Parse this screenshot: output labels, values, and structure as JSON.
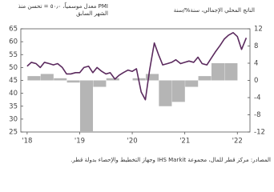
{
  "chart_data": {
    "type": "combo",
    "y_label": [
      "PMI معدل موسمياً، ٥٠٫٠ = تحسن منذ",
      "الشهر السابق"
    ],
    "y2_label": "الناتج المحلي الإجمالي، سنة%/سنة",
    "source": "المصادر: مركز قطر للمال، مجموعة IHS Markit وجهاز التخطيط والإحصاء بدولة قطر.",
    "xlim": [
      2017.88,
      2022.24
    ],
    "xticks": [
      {
        "value": 2018,
        "label": "'18"
      },
      {
        "value": 2019,
        "label": "'19"
      },
      {
        "value": 2020,
        "label": "'20"
      },
      {
        "value": 2021,
        "label": "'21"
      },
      {
        "value": 2022,
        "label": "'22"
      }
    ],
    "ylim": [
      25,
      65
    ],
    "yticks": [
      25,
      30,
      35,
      40,
      45,
      50,
      55,
      60,
      65
    ],
    "y2lim": [
      -12,
      12
    ],
    "y2ticks": [
      -12,
      -8,
      -4,
      0,
      4,
      8,
      12
    ],
    "series": [
      {
        "type": "bar",
        "axis": "y2",
        "color": "#b5b5b5",
        "x": [
          2018.13,
          2018.38,
          2018.63,
          2018.88,
          2019.13,
          2019.38,
          2019.63,
          2019.88,
          2020.13,
          2020.38,
          2020.63,
          2020.88,
          2021.13,
          2021.38,
          2021.63,
          2021.88
        ],
        "values": [
          1,
          1.5,
          0.5,
          -0.5,
          -12,
          -1.5,
          0.5,
          0,
          0.5,
          1.5,
          -6,
          -5,
          -1.5,
          1,
          4,
          4
        ]
      },
      {
        "type": "line",
        "color": "#5b2a5e",
        "x": [
          2018.0,
          2018.08,
          2018.17,
          2018.25,
          2018.33,
          2018.42,
          2018.5,
          2018.58,
          2018.67,
          2018.75,
          2018.83,
          2018.92,
          2019.0,
          2019.08,
          2019.17,
          2019.25,
          2019.33,
          2019.42,
          2019.5,
          2019.58,
          2019.67,
          2019.75,
          2019.83,
          2019.92,
          2020.0,
          2020.08,
          2020.17,
          2020.25,
          2020.33,
          2020.42,
          2020.5,
          2020.58,
          2020.67,
          2020.75,
          2020.83,
          2020.92,
          2021.0,
          2021.08,
          2021.17,
          2021.25,
          2021.33,
          2021.42,
          2021.5,
          2021.58,
          2021.67,
          2021.75,
          2021.83,
          2021.92,
          2022.0,
          2022.08,
          2022.17
        ],
        "values": [
          50.5,
          52,
          51.5,
          50,
          52,
          51.5,
          51,
          51.5,
          50,
          47.5,
          47.5,
          48,
          48,
          50,
          50.5,
          48,
          50,
          48.5,
          47.5,
          48,
          45.5,
          47,
          48,
          49,
          48.5,
          49.5,
          40.5,
          37.5,
          49,
          59.5,
          55,
          51,
          51.5,
          52,
          53,
          51.5,
          52,
          52.5,
          52,
          54,
          51.5,
          51,
          53.5,
          56,
          58.5,
          61,
          62.5,
          63.5,
          62,
          57,
          61.5
        ]
      }
    ]
  }
}
